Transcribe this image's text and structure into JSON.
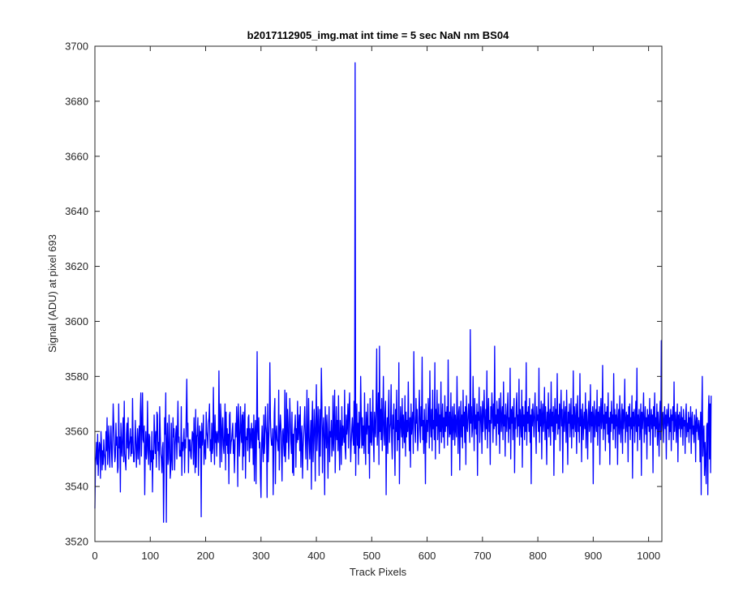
{
  "chart_data": {
    "type": "line",
    "title": "b2017112905_img.mat int time = 5 sec  NaN nm BS04",
    "xlabel": "Track Pixels",
    "ylabel": "Signal (ADU) at pixel 693",
    "xlim": [
      0,
      1024
    ],
    "ylim": [
      3520,
      3700
    ],
    "x_ticks": [
      0,
      100,
      200,
      300,
      400,
      500,
      600,
      700,
      800,
      900,
      1000
    ],
    "y_ticks": [
      3520,
      3540,
      3560,
      3580,
      3600,
      3620,
      3640,
      3660,
      3680,
      3700
    ],
    "grid": false,
    "box": true,
    "series": [
      {
        "color": "#0000ff",
        "x_start": 0,
        "x_step": 1,
        "values": [
          3532,
          3548,
          3551,
          3556,
          3548,
          3559,
          3544,
          3552,
          3556,
          3555,
          3543,
          3560,
          3555,
          3546,
          3553,
          3548,
          3557,
          3552,
          3550,
          3546,
          3560,
          3553,
          3565,
          3548,
          3556,
          3562,
          3551,
          3547,
          3558,
          3562,
          3553,
          3547,
          3557,
          3570,
          3563,
          3555,
          3549,
          3551,
          3563,
          3555,
          3558,
          3545,
          3547,
          3570,
          3554,
          3558,
          3538,
          3563,
          3554,
          3551,
          3559,
          3565,
          3549,
          3571,
          3552,
          3549,
          3546,
          3559,
          3563,
          3554,
          3565,
          3550,
          3555,
          3557,
          3561,
          3551,
          3558,
          3552,
          3572,
          3557,
          3549,
          3549,
          3555,
          3564,
          3556,
          3547,
          3555,
          3561,
          3550,
          3556,
          3562,
          3548,
          3567,
          3574,
          3551,
          3561,
          3574,
          3557,
          3556,
          3562,
          3537,
          3553,
          3560,
          3550,
          3553,
          3571,
          3555,
          3548,
          3559,
          3558,
          3546,
          3553,
          3549,
          3560,
          3538,
          3553,
          3550,
          3566,
          3558,
          3552,
          3560,
          3547,
          3567,
          3566,
          3553,
          3556,
          3546,
          3569,
          3560,
          3552,
          3550,
          3545,
          3554,
          3556,
          3527,
          3545,
          3565,
          3559,
          3574,
          3527,
          3555,
          3563,
          3548,
          3550,
          3566,
          3557,
          3543,
          3546,
          3563,
          3550,
          3546,
          3565,
          3558,
          3561,
          3546,
          3555,
          3559,
          3562,
          3550,
          3560,
          3571,
          3556,
          3558,
          3551,
          3553,
          3551,
          3569,
          3544,
          3556,
          3553,
          3557,
          3561,
          3545,
          3557,
          3554,
          3567,
          3579,
          3558,
          3563,
          3545,
          3557,
          3553,
          3557,
          3551,
          3550,
          3556,
          3560,
          3559,
          3548,
          3565,
          3555,
          3545,
          3568,
          3547,
          3558,
          3559,
          3565,
          3544,
          3556,
          3562,
          3554,
          3560,
          3529,
          3563,
          3555,
          3557,
          3566,
          3548,
          3554,
          3557,
          3550,
          3567,
          3560,
          3558,
          3554,
          3563,
          3565,
          3570,
          3553,
          3557,
          3549,
          3563,
          3552,
          3554,
          3576,
          3559,
          3548,
          3566,
          3556,
          3560,
          3551,
          3559,
          3560,
          3556,
          3582,
          3561,
          3547,
          3570,
          3565,
          3549,
          3560,
          3565,
          3555,
          3552,
          3559,
          3570,
          3546,
          3567,
          3555,
          3561,
          3552,
          3559,
          3541,
          3566,
          3567,
          3552,
          3556,
          3557,
          3560,
          3563,
          3552,
          3557,
          3545,
          3554,
          3563,
          3558,
          3569,
          3563,
          3540,
          3570,
          3563,
          3551,
          3557,
          3569,
          3560,
          3556,
          3566,
          3546,
          3567,
          3551,
          3563,
          3570,
          3543,
          3558,
          3557,
          3561,
          3553,
          3565,
          3566,
          3549,
          3561,
          3554,
          3558,
          3563,
          3554,
          3561,
          3548,
          3566,
          3542,
          3559,
          3564,
          3541,
          3559,
          3589,
          3560,
          3557,
          3565,
          3554,
          3556,
          3543,
          3536,
          3555,
          3562,
          3554,
          3549,
          3566,
          3552,
          3556,
          3569,
          3562,
          3559,
          3536,
          3570,
          3549,
          3557,
          3562,
          3585,
          3565,
          3558,
          3555,
          3555,
          3561,
          3537,
          3554,
          3567,
          3572,
          3541,
          3559,
          3562,
          3557,
          3556,
          3553,
          3575,
          3546,
          3559,
          3566,
          3562,
          3552,
          3542,
          3560,
          3561,
          3555,
          3551,
          3575,
          3549,
          3554,
          3574,
          3556,
          3568,
          3563,
          3550,
          3557,
          3572,
          3564,
          3556,
          3552,
          3567,
          3545,
          3559,
          3544,
          3560,
          3562,
          3566,
          3547,
          3561,
          3556,
          3571,
          3557,
          3561,
          3566,
          3553,
          3569,
          3547,
          3558,
          3562,
          3543,
          3554,
          3558,
          3563,
          3569,
          3559,
          3550,
          3560,
          3575,
          3546,
          3556,
          3572,
          3558,
          3550,
          3557,
          3564,
          3539,
          3563,
          3571,
          3549,
          3556,
          3568,
          3561,
          3542,
          3564,
          3577,
          3553,
          3559,
          3569,
          3560,
          3544,
          3568,
          3551,
          3562,
          3583,
          3570,
          3545,
          3560,
          3565,
          3557,
          3537,
          3569,
          3562,
          3554,
          3566,
          3557,
          3543,
          3561,
          3569,
          3549,
          3560,
          3558,
          3564,
          3551,
          3556,
          3573,
          3553,
          3562,
          3575,
          3545,
          3559,
          3569,
          3557,
          3564,
          3553,
          3573,
          3557,
          3546,
          3564,
          3560,
          3548,
          3569,
          3555,
          3562,
          3559,
          3556,
          3575,
          3554,
          3550,
          3566,
          3559,
          3562,
          3570,
          3554,
          3567,
          3574,
          3560,
          3549,
          3556,
          3561,
          3565,
          3558,
          3555,
          3571,
          3552,
          3694,
          3544,
          3561,
          3570,
          3555,
          3563,
          3548,
          3567,
          3554,
          3559,
          3580,
          3566,
          3554,
          3565,
          3555,
          3562,
          3552,
          3574,
          3558,
          3548,
          3567,
          3559,
          3563,
          3570,
          3552,
          3562,
          3543,
          3572,
          3556,
          3567,
          3555,
          3561,
          3575,
          3557,
          3549,
          3567,
          3561,
          3558,
          3572,
          3590,
          3555,
          3562,
          3574,
          3548,
          3591,
          3560,
          3568,
          3557,
          3572,
          3553,
          3563,
          3580,
          3559,
          3555,
          3567,
          3571,
          3537,
          3560,
          3565,
          3552,
          3568,
          3575,
          3556,
          3561,
          3563,
          3577,
          3557,
          3550,
          3566,
          3561,
          3570,
          3556,
          3544,
          3568,
          3560,
          3575,
          3553,
          3564,
          3557,
          3585,
          3541,
          3559,
          3569,
          3562,
          3558,
          3572,
          3554,
          3566,
          3561,
          3556,
          3573,
          3551,
          3567,
          3558,
          3564,
          3560,
          3578,
          3562,
          3553,
          3565,
          3547,
          3570,
          3559,
          3563,
          3567,
          3552,
          3589,
          3566,
          3561,
          3556,
          3572,
          3563,
          3568,
          3553,
          3558,
          3566,
          3575,
          3561,
          3556,
          3569,
          3562,
          3587,
          3557,
          3564,
          3552,
          3568,
          3561,
          3541,
          3570,
          3556,
          3564,
          3560,
          3572,
          3566,
          3554,
          3582,
          3563,
          3558,
          3568,
          3553,
          3575,
          3561,
          3564,
          3557,
          3585,
          3550,
          3568,
          3562,
          3575,
          3557,
          3564,
          3570,
          3552,
          3566,
          3560,
          3578,
          3556,
          3563,
          3570,
          3558,
          3565,
          3554,
          3573,
          3560,
          3567,
          3562,
          3569,
          3555,
          3586,
          3563,
          3558,
          3567,
          3559,
          3574,
          3544,
          3564,
          3569,
          3557,
          3562,
          3570,
          3555,
          3566,
          3561,
          3558,
          3580,
          3564,
          3552,
          3567,
          3569,
          3546,
          3563,
          3571,
          3558,
          3566,
          3554,
          3575,
          3562,
          3567,
          3556,
          3569,
          3548,
          3573,
          3562,
          3560,
          3566,
          3570,
          3563,
          3556,
          3597,
          3563,
          3569,
          3558,
          3561,
          3580,
          3565,
          3553,
          3572,
          3561,
          3566,
          3559,
          3570,
          3544,
          3567,
          3564,
          3576,
          3556,
          3562,
          3569,
          3565,
          3552,
          3571,
          3560,
          3566,
          3575,
          3563,
          3557,
          3568,
          3561,
          3582,
          3554,
          3566,
          3572,
          3560,
          3564,
          3548,
          3569,
          3563,
          3574,
          3567,
          3556,
          3570,
          3561,
          3591,
          3562,
          3566,
          3555,
          3571,
          3563,
          3568,
          3559,
          3572,
          3552,
          3566,
          3574,
          3560,
          3565,
          3569,
          3557,
          3578,
          3562,
          3566,
          3551,
          3570,
          3564,
          3560,
          3568,
          3574,
          3556,
          3565,
          3561,
          3583,
          3550,
          3568,
          3563,
          3569,
          3557,
          3566,
          3572,
          3545,
          3565,
          3561,
          3569,
          3574,
          3558,
          3566,
          3562,
          3579,
          3555,
          3568,
          3564,
          3558,
          3575,
          3547,
          3569,
          3562,
          3566,
          3557,
          3571,
          3560,
          3585,
          3555,
          3567,
          3563,
          3569,
          3560,
          3572,
          3556,
          3566,
          3541,
          3568,
          3562,
          3570,
          3565,
          3558,
          3567,
          3574,
          3561,
          3552,
          3569,
          3564,
          3566,
          3560,
          3583,
          3556,
          3568,
          3562,
          3571,
          3550,
          3566,
          3570,
          3560,
          3564,
          3576,
          3557,
          3569,
          3563,
          3548,
          3567,
          3561,
          3574,
          3558,
          3565,
          3568,
          3555,
          3578,
          3562,
          3567,
          3560,
          3569,
          3544,
          3565,
          3572,
          3557,
          3568,
          3563,
          3581,
          3559,
          3566,
          3561,
          3570,
          3553,
          3567,
          3575,
          3562,
          3568,
          3545,
          3564,
          3571,
          3560,
          3566,
          3569,
          3556,
          3575,
          3562,
          3548,
          3567,
          3563,
          3570,
          3558,
          3565,
          3572,
          3554,
          3566,
          3561,
          3582,
          3558,
          3569,
          3564,
          3560,
          3570,
          3552,
          3566,
          3573,
          3560,
          3565,
          3556,
          3581,
          3562,
          3568,
          3549,
          3565,
          3570,
          3557,
          3563,
          3567,
          3561,
          3574,
          3554,
          3568,
          3563,
          3550,
          3566,
          3571,
          3560,
          3563,
          3577,
          3556,
          3567,
          3562,
          3569,
          3541,
          3566,
          3571,
          3558,
          3564,
          3568,
          3560,
          3575,
          3555,
          3567,
          3562,
          3569,
          3548,
          3566,
          3572,
          3561,
          3564,
          3584,
          3557,
          3566,
          3561,
          3570,
          3553,
          3567,
          3563,
          3569,
          3559,
          3574,
          3556,
          3565,
          3548,
          3567,
          3560,
          3571,
          3563,
          3566,
          3557,
          3581,
          3561,
          3568,
          3554,
          3566,
          3562,
          3570,
          3548,
          3564,
          3568,
          3559,
          3573,
          3562,
          3556,
          3566,
          3570,
          3552,
          3568,
          3561,
          3565,
          3579,
          3556,
          3563,
          3567,
          3560,
          3566,
          3549,
          3569,
          3562,
          3570,
          3557,
          3565,
          3561,
          3573,
          3543,
          3567,
          3562,
          3568,
          3556,
          3564,
          3571,
          3560,
          3583,
          3553,
          3566,
          3562,
          3568,
          3557,
          3563,
          3570,
          3544,
          3567,
          3561,
          3566,
          3574,
          3556,
          3563,
          3569,
          3559,
          3565,
          3550,
          3568,
          3562,
          3566,
          3560,
          3572,
          3555,
          3564,
          3568,
          3561,
          3566,
          3545,
          3569,
          3562,
          3574,
          3558,
          3565,
          3561,
          3570,
          3555,
          3567,
          3562,
          3551,
          3566,
          3571,
          3557,
          3593,
          3560,
          3565,
          3567,
          3556,
          3564,
          3569,
          3561,
          3566,
          3550,
          3568,
          3562,
          3564,
          3570,
          3557,
          3565,
          3560,
          3568,
          3553,
          3566,
          3564,
          3569,
          3557,
          3578,
          3560,
          3564,
          3567,
          3556,
          3563,
          3570,
          3549,
          3566,
          3561,
          3567,
          3563,
          3558,
          3569,
          3561,
          3565,
          3555,
          3568,
          3562,
          3564,
          3552,
          3566,
          3570,
          3558,
          3563,
          3560,
          3567,
          3556,
          3565,
          3561,
          3569,
          3552,
          3564,
          3567,
          3559,
          3562,
          3556,
          3566,
          3563,
          3549,
          3568,
          3560,
          3565,
          3562,
          3557,
          3564,
          3561,
          3549,
          3567,
          3537,
          3565,
          3580,
          3551,
          3558,
          3562,
          3544,
          3556,
          3549,
          3541,
          3562,
          3563,
          3537,
          3567,
          3573,
          3550,
          3570,
          3545,
          3573
        ]
      }
    ]
  }
}
